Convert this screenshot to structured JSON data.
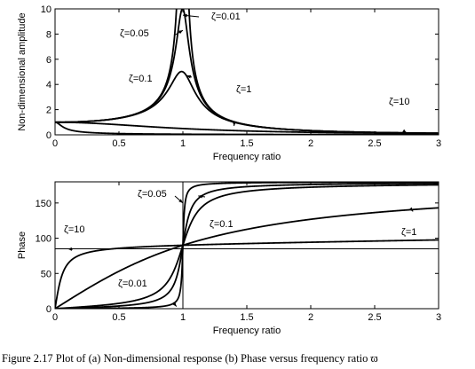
{
  "caption": "Figure 2.17 Plot of (a) Non-dimensional response (b) Phase versus frequency ratio ϖ",
  "chart_data": [
    {
      "type": "line",
      "xlabel": "Frequency ratio",
      "ylabel": "Non-dimensional amplitude",
      "xlim": [
        0,
        3
      ],
      "ylim": [
        0,
        10
      ],
      "xticks": [
        "0",
        "0.5",
        "1",
        "1.5",
        "2",
        "2.5",
        "3"
      ],
      "yticks": [
        "0",
        "2",
        "4",
        "6",
        "8",
        "10"
      ],
      "grid": false,
      "series": [
        {
          "name": "ζ=0.01",
          "damping": 0.01
        },
        {
          "name": "ζ=0.05",
          "damping": 0.05
        },
        {
          "name": "ζ=0.1",
          "damping": 0.1
        },
        {
          "name": "ζ=1",
          "damping": 1
        },
        {
          "name": "ζ=10",
          "damping": 10
        }
      ],
      "annotations": [
        {
          "text": "ζ=0.01",
          "x": 1.0,
          "y": 9.5
        },
        {
          "text": "ζ=0.05",
          "x": 1.0,
          "y": 8.3
        },
        {
          "text": "ζ=0.1",
          "x": 1.03,
          "y": 4.7
        },
        {
          "text": "ζ=1",
          "x": 1.4,
          "y": 0.7
        },
        {
          "text": "ζ=10",
          "x": 2.75,
          "y": 0.15
        }
      ]
    },
    {
      "type": "line",
      "xlabel": "Frequency ratio",
      "ylabel": "Phase",
      "xlim": [
        0,
        3
      ],
      "ylim": [
        0,
        180
      ],
      "xticks": [
        "0",
        "0.5",
        "1",
        "1.5",
        "2",
        "2.5",
        "3"
      ],
      "yticks": [
        "0",
        "50",
        "100",
        "150"
      ],
      "grid": false,
      "reference_lines": {
        "x": 1,
        "y": 85
      },
      "series": [
        {
          "name": "ζ=0.01",
          "damping": 0.01
        },
        {
          "name": "ζ=0.05",
          "damping": 0.05
        },
        {
          "name": "ζ=0.1",
          "damping": 0.1
        },
        {
          "name": "ζ=1",
          "damping": 1
        },
        {
          "name": "ζ=10",
          "damping": 10
        }
      ],
      "annotations": [
        {
          "text": "ζ=0.05",
          "x": 1.0,
          "y": 150
        },
        {
          "text": "ζ=0.1",
          "x": 1.12,
          "y": 160
        },
        {
          "text": "ζ=1",
          "x": 2.8,
          "y": 138
        },
        {
          "text": "ζ=10",
          "x": 0.1,
          "y": 85
        },
        {
          "text": "ζ=0.01",
          "x": 0.95,
          "y": 3
        }
      ]
    }
  ]
}
